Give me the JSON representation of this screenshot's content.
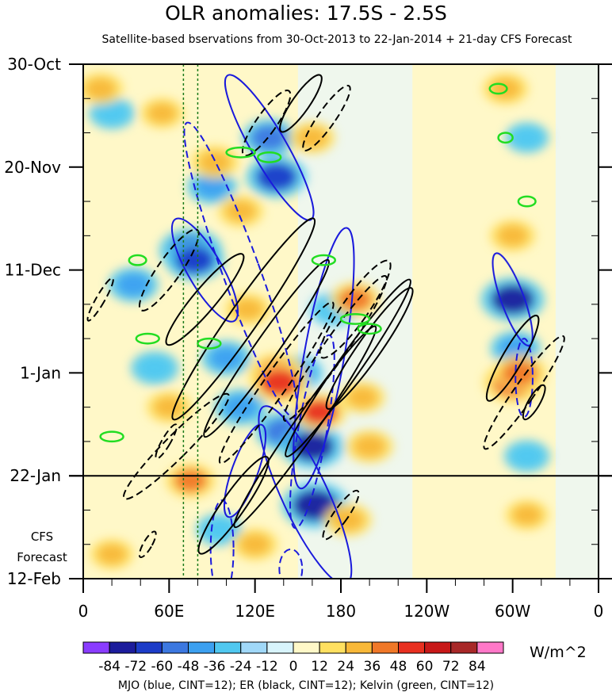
{
  "title": "OLR anomalies: 17.5S - 2.5S",
  "subtitle": "Satellite-based bservations from 30-Oct-2013 to 22-Jan-2014 + 21-day CFS Forecast",
  "forecast_label": [
    "CFS",
    "Forecast"
  ],
  "units": "W/m^2",
  "caption": "MJO (blue, CINT=12); ER (black, CINT=12); Kelvin (green, CINT=12)",
  "colors": {
    "background": "#ffffff",
    "mjo": "#1a1adc",
    "er": "#000000",
    "kelvin": "#22dd22",
    "reference_line": "#1a7a1a"
  },
  "chart_data": {
    "type": "heatmap",
    "title": "OLR anomalies: 17.5S - 2.5S",
    "xlabel": "",
    "ylabel": "",
    "x_ticks": [
      "0",
      "60E",
      "120E",
      "180",
      "120W",
      "60W",
      "0"
    ],
    "x_range_deg_east": [
      0,
      360
    ],
    "y_ticks": [
      "30-Oct",
      "20-Nov",
      "11-Dec",
      "1-Jan",
      "22-Jan",
      "12-Feb"
    ],
    "y_range_days": [
      0,
      105
    ],
    "observation_end": "22-Jan",
    "colorbar": {
      "levels": [
        -84,
        -72,
        -60,
        -48,
        -36,
        -24,
        -12,
        0,
        12,
        24,
        36,
        48,
        60,
        72,
        84
      ],
      "labels": [
        "-84",
        "-72",
        "-60",
        "-48",
        "-36",
        "-24",
        "-12",
        "0",
        "12",
        "24",
        "36",
        "48",
        "60",
        "72",
        "84"
      ],
      "colors": [
        "#8a3cff",
        "#1c1c9c",
        "#1c3cc8",
        "#3c78e0",
        "#3ca0f0",
        "#50c8f0",
        "#a0d8f8",
        "#d8f4fc",
        "#fff8c8",
        "#ffe060",
        "#f8b838",
        "#f07828",
        "#e83020",
        "#c81818",
        "#a82828",
        "#ff78c8"
      ]
    },
    "reference_lines_lon": [
      70,
      80
    ],
    "anomaly_blobs": [
      {
        "lon": 20,
        "day": 10,
        "v": -30
      },
      {
        "lon": 35,
        "day": 45,
        "v": -40
      },
      {
        "lon": 50,
        "day": 62,
        "v": -35
      },
      {
        "lon": 75,
        "day": 38,
        "v": -70
      },
      {
        "lon": 78,
        "day": 40,
        "v": -60
      },
      {
        "lon": 90,
        "day": 25,
        "v": -40
      },
      {
        "lon": 100,
        "day": 60,
        "v": -40
      },
      {
        "lon": 110,
        "day": 70,
        "v": -45
      },
      {
        "lon": 130,
        "day": 15,
        "v": -50
      },
      {
        "lon": 135,
        "day": 23,
        "v": -65
      },
      {
        "lon": 140,
        "day": 75,
        "v": -55
      },
      {
        "lon": 160,
        "day": 78,
        "v": -72
      },
      {
        "lon": 162,
        "day": 90,
        "v": -80
      },
      {
        "lon": 150,
        "day": 63,
        "v": -40
      },
      {
        "lon": 175,
        "day": 50,
        "v": -35
      },
      {
        "lon": 95,
        "day": 95,
        "v": -30
      },
      {
        "lon": 300,
        "day": 48,
        "v": -72
      },
      {
        "lon": 302,
        "day": 58,
        "v": -40
      },
      {
        "lon": 310,
        "day": 80,
        "v": -30
      },
      {
        "lon": 310,
        "day": 15,
        "v": -25
      },
      {
        "lon": 12,
        "day": 5,
        "v": 30
      },
      {
        "lon": 55,
        "day": 10,
        "v": 25
      },
      {
        "lon": 92,
        "day": 20,
        "v": 35
      },
      {
        "lon": 110,
        "day": 30,
        "v": 30
      },
      {
        "lon": 160,
        "day": 15,
        "v": 30
      },
      {
        "lon": 115,
        "day": 50,
        "v": 30
      },
      {
        "lon": 75,
        "day": 85,
        "v": 40
      },
      {
        "lon": 135,
        "day": 63,
        "v": 55
      },
      {
        "lon": 137,
        "day": 65,
        "v": 60
      },
      {
        "lon": 165,
        "day": 71,
        "v": 50
      },
      {
        "lon": 190,
        "day": 48,
        "v": 40
      },
      {
        "lon": 195,
        "day": 68,
        "v": 30
      },
      {
        "lon": 200,
        "day": 78,
        "v": 35
      },
      {
        "lon": 185,
        "day": 93,
        "v": 35
      },
      {
        "lon": 60,
        "day": 70,
        "v": 30
      },
      {
        "lon": 120,
        "day": 98,
        "v": 30
      },
      {
        "lon": 20,
        "day": 100,
        "v": 25
      },
      {
        "lon": 300,
        "day": 65,
        "v": 60
      },
      {
        "lon": 305,
        "day": 63,
        "v": 48
      },
      {
        "lon": 300,
        "day": 35,
        "v": 30
      },
      {
        "lon": 295,
        "day": 5,
        "v": 30
      },
      {
        "lon": 310,
        "day": 92,
        "v": 25
      }
    ],
    "mjo_contours": [
      {
        "lon": 130,
        "day": 17,
        "rlon": 12,
        "rday": 17,
        "tilt": -30,
        "dashed": false
      },
      {
        "lon": 85,
        "day": 42,
        "rlon": 12,
        "rday": 12,
        "tilt": -30,
        "dashed": false
      },
      {
        "lon": 110,
        "day": 42,
        "rlon": 13,
        "rday": 32,
        "tilt": -20,
        "dashed": true
      },
      {
        "lon": 168,
        "day": 60,
        "rlon": 14,
        "rday": 27,
        "tilt": 10,
        "dashed": false
      },
      {
        "lon": 155,
        "day": 88,
        "rlon": 16,
        "rday": 20,
        "tilt": -25,
        "dashed": false
      },
      {
        "lon": 113,
        "day": 83,
        "rlon": 9,
        "rday": 10,
        "tilt": 20,
        "dashed": false
      },
      {
        "lon": 160,
        "day": 75,
        "rlon": 10,
        "rday": 20,
        "tilt": 10,
        "dashed": true
      },
      {
        "lon": 300,
        "day": 48,
        "rlon": 8,
        "rday": 10,
        "tilt": -20,
        "dashed": false
      },
      {
        "lon": 308,
        "day": 64,
        "rlon": 6,
        "rday": 8,
        "tilt": 0,
        "dashed": true
      },
      {
        "lon": 97,
        "day": 99,
        "rlon": 8,
        "rday": 10,
        "tilt": 0,
        "dashed": true
      },
      {
        "lon": 145,
        "day": 103,
        "rlon": 8,
        "rday": 4,
        "tilt": 0,
        "dashed": true
      }
    ],
    "er_contours": [
      {
        "lon": 128,
        "day": 12,
        "rlon": 7,
        "rday": 8,
        "tilt": 35,
        "dashed": true
      },
      {
        "lon": 152,
        "day": 8,
        "rlon": 6,
        "rday": 7,
        "tilt": 35,
        "dashed": false
      },
      {
        "lon": 170,
        "day": 11,
        "rlon": 6,
        "rday": 8,
        "tilt": 35,
        "dashed": true
      },
      {
        "lon": 60,
        "day": 42,
        "rlon": 8,
        "rday": 10,
        "tilt": 35,
        "dashed": true
      },
      {
        "lon": 85,
        "day": 48,
        "rlon": 8,
        "rday": 12,
        "tilt": 40,
        "dashed": false
      },
      {
        "lon": 112,
        "day": 52,
        "rlon": 10,
        "rday": 25,
        "tilt": 35,
        "dashed": false
      },
      {
        "lon": 128,
        "day": 58,
        "rlon": 8,
        "rday": 22,
        "tilt": 35,
        "dashed": false
      },
      {
        "lon": 135,
        "day": 65,
        "rlon": 8,
        "rday": 20,
        "tilt": 35,
        "dashed": true
      },
      {
        "lon": 155,
        "day": 74,
        "rlon": 8,
        "rday": 25,
        "tilt": 35,
        "dashed": false
      },
      {
        "lon": 176,
        "day": 58,
        "rlon": 8,
        "rday": 18,
        "tilt": 35,
        "dashed": true
      },
      {
        "lon": 185,
        "day": 62,
        "rlon": 8,
        "rday": 22,
        "tilt": 35,
        "dashed": false
      },
      {
        "lon": 190,
        "day": 50,
        "rlon": 9,
        "rday": 12,
        "tilt": 35,
        "dashed": true
      },
      {
        "lon": 200,
        "day": 58,
        "rlon": 8,
        "rday": 15,
        "tilt": 35,
        "dashed": false
      },
      {
        "lon": 65,
        "day": 78,
        "rlon": 8,
        "rday": 15,
        "tilt": 45,
        "dashed": true
      },
      {
        "lon": 105,
        "day": 90,
        "rlon": 8,
        "rday": 12,
        "tilt": 35,
        "dashed": false
      },
      {
        "lon": 300,
        "day": 60,
        "rlon": 7,
        "rday": 10,
        "tilt": 30,
        "dashed": false
      },
      {
        "lon": 308,
        "day": 67,
        "rlon": 7,
        "rday": 14,
        "tilt": 35,
        "dashed": true
      },
      {
        "lon": 12,
        "day": 48,
        "rlon": 3,
        "rday": 5,
        "tilt": 30,
        "dashed": true
      },
      {
        "lon": 45,
        "day": 98,
        "rlon": 3,
        "rday": 3,
        "tilt": 30,
        "dashed": true
      },
      {
        "lon": 58,
        "day": 77,
        "rlon": 3,
        "rday": 4,
        "tilt": 30,
        "dashed": true
      },
      {
        "lon": 180,
        "day": 92,
        "rlon": 5,
        "rday": 6,
        "tilt": 35,
        "dashed": true
      },
      {
        "lon": 315,
        "day": 69,
        "rlon": 4,
        "rday": 4,
        "tilt": 30,
        "dashed": false
      }
    ],
    "kelvin_contours": [
      {
        "lon": 38,
        "day": 40,
        "rlon": 6,
        "rday": 1
      },
      {
        "lon": 45,
        "day": 56,
        "rlon": 8,
        "rday": 1
      },
      {
        "lon": 88,
        "day": 57,
        "rlon": 8,
        "rday": 1
      },
      {
        "lon": 190,
        "day": 52,
        "rlon": 10,
        "rday": 1
      },
      {
        "lon": 200,
        "day": 54,
        "rlon": 8,
        "rday": 1
      },
      {
        "lon": 110,
        "day": 18,
        "rlon": 10,
        "rday": 1
      },
      {
        "lon": 130,
        "day": 19,
        "rlon": 8,
        "rday": 1
      },
      {
        "lon": 20,
        "day": 76,
        "rlon": 8,
        "rday": 1
      },
      {
        "lon": 290,
        "day": 5,
        "rlon": 6,
        "rday": 1
      },
      {
        "lon": 310,
        "day": 28,
        "rlon": 6,
        "rday": 1
      },
      {
        "lon": 168,
        "day": 40,
        "rlon": 8,
        "rday": 1
      },
      {
        "lon": 295,
        "day": 15,
        "rlon": 5,
        "rday": 1
      }
    ]
  }
}
